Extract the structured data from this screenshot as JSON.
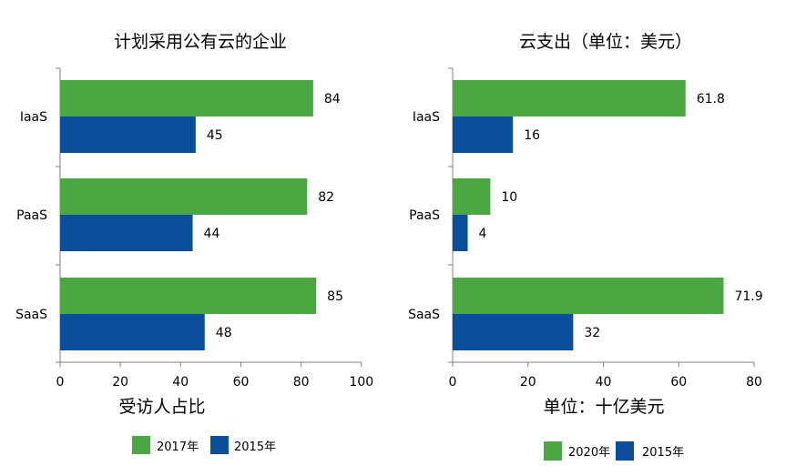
{
  "colors": {
    "green": "#4aa742",
    "blue": "#0b4f9c",
    "axis": "#808080"
  },
  "chart_data": [
    {
      "type": "bar",
      "orientation": "horizontal",
      "title": "计划采用公有云的企业",
      "xlabel": "受访人占比",
      "ylabel": "",
      "categories": [
        "IaaS",
        "PaaS",
        "SaaS"
      ],
      "series": [
        {
          "name": "2017年",
          "color": "#4aa742",
          "values": [
            84,
            82,
            85
          ]
        },
        {
          "name": "2015年",
          "color": "#0b4f9c",
          "values": [
            45,
            44,
            48
          ]
        }
      ],
      "xlim": [
        0,
        100
      ],
      "xticks": [
        "0",
        "20",
        "40",
        "60",
        "80",
        "100"
      ],
      "grid": false,
      "legend": "bottom"
    },
    {
      "type": "bar",
      "orientation": "horizontal",
      "title": "云支出（单位：美元）",
      "xlabel": "单位：十亿美元",
      "ylabel": "",
      "categories": [
        "IaaS",
        "PaaS",
        "SaaS"
      ],
      "series": [
        {
          "name": "2020年",
          "color": "#4aa742",
          "values": [
            61.8,
            10,
            71.9
          ]
        },
        {
          "name": "2015年",
          "color": "#0b4f9c",
          "values": [
            16,
            4,
            32
          ]
        }
      ],
      "xlim": [
        0,
        80
      ],
      "xticks": [
        "0",
        "20",
        "40",
        "60",
        "80"
      ],
      "grid": false,
      "legend": "bottom"
    }
  ]
}
